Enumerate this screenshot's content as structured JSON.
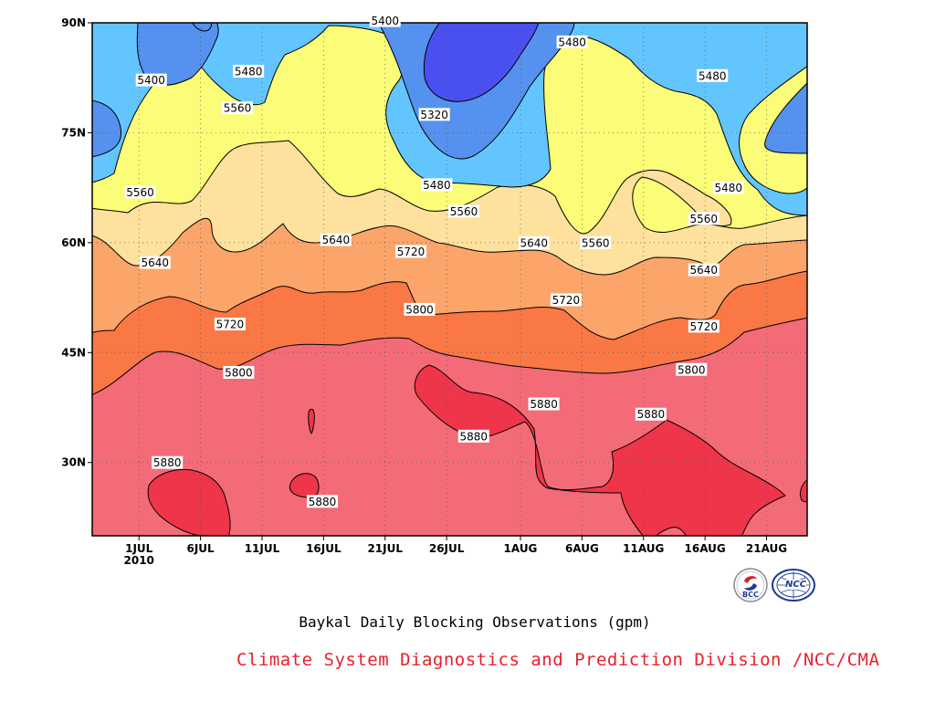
{
  "chart_data": {
    "type": "contour",
    "caption": "Baykal Daily Blocking Observations (gpm)",
    "x_ticks": [
      {
        "label": "1JUL",
        "day": 0
      },
      {
        "label": "6JUL",
        "day": 5
      },
      {
        "label": "11JUL",
        "day": 10
      },
      {
        "label": "16JUL",
        "day": 15
      },
      {
        "label": "21JUL",
        "day": 20
      },
      {
        "label": "26JUL",
        "day": 25
      },
      {
        "label": "1AUG",
        "day": 31
      },
      {
        "label": "6AUG",
        "day": 36
      },
      {
        "label": "11AUG",
        "day": 41
      },
      {
        "label": "16AUG",
        "day": 46
      },
      {
        "label": "21AUG",
        "day": 51
      }
    ],
    "x_year_label": "2010",
    "xlim": [
      -3.8,
      54.3
    ],
    "y_ticks": [
      {
        "label": "90N",
        "lat": 90
      },
      {
        "label": "75N",
        "lat": 75
      },
      {
        "label": "60N",
        "lat": 60
      },
      {
        "label": "45N",
        "lat": 45
      },
      {
        "label": "30N",
        "lat": 30
      }
    ],
    "ylim": [
      20,
      90
    ],
    "grid": true,
    "levels": [
      5320,
      5400,
      5480,
      5560,
      5640,
      5720,
      5800,
      5880
    ],
    "fills": [
      {
        "above": 0,
        "color": "#4a50f0"
      },
      {
        "above": 5320,
        "color": "#5591ee"
      },
      {
        "above": 5400,
        "color": "#63c5fd"
      },
      {
        "above": 5480,
        "color": "#fbfc78"
      },
      {
        "above": 5560,
        "color": "#fde19d"
      },
      {
        "above": 5640,
        "color": "#fba56a"
      },
      {
        "above": 5720,
        "color": "#f97846"
      },
      {
        "above": 5800,
        "color": "#f46b78"
      },
      {
        "above": 5880,
        "color": "#ef3549"
      }
    ],
    "contour_labels": [
      {
        "text": "5400",
        "day": 1.0,
        "lat": 82.2
      },
      {
        "text": "5400",
        "day": 20.0,
        "lat": 90.3
      },
      {
        "text": "5480",
        "day": 8.9,
        "lat": 83.4
      },
      {
        "text": "5480",
        "day": 35.2,
        "lat": 87.4
      },
      {
        "text": "5480",
        "day": 46.6,
        "lat": 82.8
      },
      {
        "text": "5480",
        "day": 24.2,
        "lat": 67.9
      },
      {
        "text": "5480",
        "day": 47.9,
        "lat": 67.5
      },
      {
        "text": "5320",
        "day": 24.0,
        "lat": 77.5
      },
      {
        "text": "5560",
        "day": 8.0,
        "lat": 78.4
      },
      {
        "text": "5560",
        "day": 0.1,
        "lat": 66.9
      },
      {
        "text": "5560",
        "day": 26.4,
        "lat": 64.3
      },
      {
        "text": "5560",
        "day": 37.1,
        "lat": 60.0
      },
      {
        "text": "5560",
        "day": 45.9,
        "lat": 63.3
      },
      {
        "text": "5640",
        "day": 1.3,
        "lat": 57.3
      },
      {
        "text": "5640",
        "day": 16.0,
        "lat": 60.4
      },
      {
        "text": "5640",
        "day": 32.1,
        "lat": 60.0
      },
      {
        "text": "5640",
        "day": 45.9,
        "lat": 56.3
      },
      {
        "text": "5720",
        "day": 22.1,
        "lat": 58.8
      },
      {
        "text": "5720",
        "day": 34.7,
        "lat": 52.2
      },
      {
        "text": "5720",
        "day": 7.4,
        "lat": 48.9
      },
      {
        "text": "5720",
        "day": 45.9,
        "lat": 48.6
      },
      {
        "text": "5800",
        "day": 22.8,
        "lat": 50.9
      },
      {
        "text": "5800",
        "day": 8.1,
        "lat": 42.3
      },
      {
        "text": "5800",
        "day": 44.9,
        "lat": 42.7
      },
      {
        "text": "5880",
        "day": 32.9,
        "lat": 38.0
      },
      {
        "text": "5880",
        "day": 41.6,
        "lat": 36.6
      },
      {
        "text": "5880",
        "day": 27.2,
        "lat": 33.6
      },
      {
        "text": "5880",
        "day": 2.3,
        "lat": 30.0
      },
      {
        "text": "5880",
        "day": 14.9,
        "lat": 24.7
      }
    ]
  },
  "credit": "Climate System Diagnostics and Prediction Division /NCC/CMA",
  "logos": {
    "bcc": "BCC",
    "ncc": "NCC"
  },
  "colors": {
    "credit": "#e8202a",
    "logo_blue": "#1a3a8f",
    "logo_red": "#d42030"
  }
}
